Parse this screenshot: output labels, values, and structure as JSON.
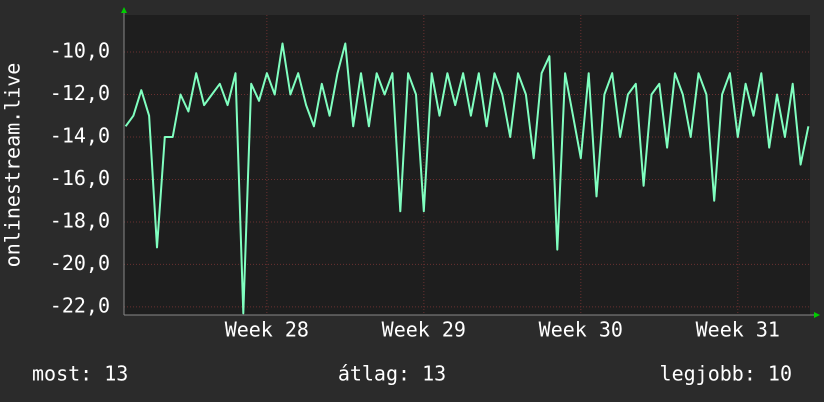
{
  "chart_data": {
    "type": "line",
    "ylabel": "onlinestream.live",
    "x": [
      27.1,
      27.15,
      27.2,
      27.25,
      27.3,
      27.35,
      27.4,
      27.45,
      27.5,
      27.55,
      27.6,
      27.65,
      27.7,
      27.75,
      27.8,
      27.85,
      27.9,
      27.95,
      28.0,
      28.05,
      28.1,
      28.15,
      28.2,
      28.25,
      28.3,
      28.35,
      28.4,
      28.45,
      28.5,
      28.55,
      28.6,
      28.65,
      28.7,
      28.75,
      28.8,
      28.85,
      28.9,
      28.95,
      29.0,
      29.05,
      29.1,
      29.15,
      29.2,
      29.25,
      29.3,
      29.35,
      29.4,
      29.45,
      29.5,
      29.55,
      29.6,
      29.65,
      29.7,
      29.75,
      29.8,
      29.85,
      29.9,
      29.95,
      30.0,
      30.05,
      30.1,
      30.15,
      30.2,
      30.25,
      30.3,
      30.35,
      30.4,
      30.45,
      30.5,
      30.55,
      30.6,
      30.65,
      30.7,
      30.75,
      30.8,
      30.85,
      30.9,
      30.95,
      31.0,
      31.05,
      31.1,
      31.15,
      31.2,
      31.25,
      31.3,
      31.35,
      31.4,
      31.45
    ],
    "series": [
      {
        "color": "#80ffc0",
        "values": [
          -13.5,
          -13,
          -11.8,
          -13,
          -19.2,
          -14,
          -14,
          -12,
          -12.8,
          -11,
          -12.5,
          -12,
          -11.5,
          -12.5,
          -11,
          -22.3,
          -11.5,
          -12.3,
          -11,
          -12,
          -9.6,
          -12,
          -11,
          -12.5,
          -13.5,
          -11.5,
          -13,
          -11,
          -9.6,
          -13.5,
          -11,
          -13.5,
          -11,
          -12,
          -11,
          -17.5,
          -11,
          -12,
          -17.5,
          -11,
          -13,
          -11,
          -12.5,
          -11,
          -13,
          -11,
          -13.5,
          -11,
          -12,
          -14,
          -11,
          -12,
          -15,
          -11,
          -10.2,
          -19.3,
          -11,
          -13,
          -15,
          -11,
          -16.8,
          -12,
          -11,
          -14,
          -12,
          -11.5,
          -16.3,
          -12,
          -11.5,
          -14.5,
          -11,
          -12,
          -14,
          -11,
          -12,
          -17,
          -12,
          -11,
          -14,
          -11.5,
          -13,
          -11,
          -14.5,
          -12,
          -14,
          -11.5,
          -15.3,
          -13.5
        ]
      }
    ],
    "xlim": [
      27.09,
      31.46
    ],
    "xticks": [
      {
        "value": 28,
        "label": "Week 28"
      },
      {
        "value": 29,
        "label": "Week 29"
      },
      {
        "value": 30,
        "label": "Week 30"
      },
      {
        "value": 31,
        "label": "Week 31"
      }
    ],
    "ylim": [
      -22.38,
      -8.26
    ],
    "yticks": [
      {
        "value": -22,
        "label": "-22,0"
      },
      {
        "value": -20,
        "label": "-20,0"
      },
      {
        "value": -18,
        "label": "-18,0"
      },
      {
        "value": -16,
        "label": "-16,0"
      },
      {
        "value": -14,
        "label": "-14,0"
      },
      {
        "value": -12,
        "label": "-12,0"
      },
      {
        "value": -10,
        "label": "-10,0"
      }
    ],
    "grid": true,
    "footer": [
      "most: 13",
      "átlag: 13",
      "legjobb: 10"
    ]
  }
}
